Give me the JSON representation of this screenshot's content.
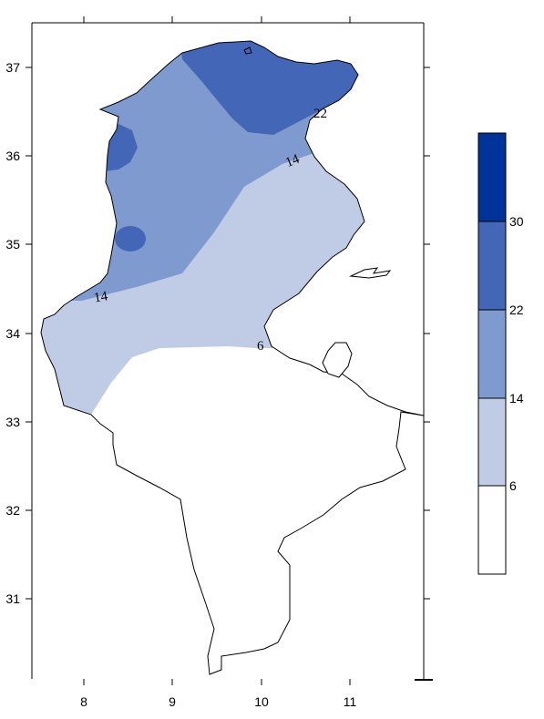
{
  "map": {
    "x_ticks": [
      "8",
      "9",
      "10",
      "11"
    ],
    "y_ticks": [
      "37",
      "36",
      "35",
      "34",
      "33",
      "32",
      "31"
    ],
    "contour_labels": [
      "22",
      "14",
      "14",
      "6"
    ],
    "colors": {
      "below_6": "#ffffff",
      "6_14": "#c0cce6",
      "14_22": "#7f9ace",
      "22_30": "#4466b6",
      "above_30": "#003399",
      "outline": "#000000"
    }
  },
  "colorbar": {
    "labels": [
      "30",
      "22",
      "14",
      "6"
    ]
  }
}
